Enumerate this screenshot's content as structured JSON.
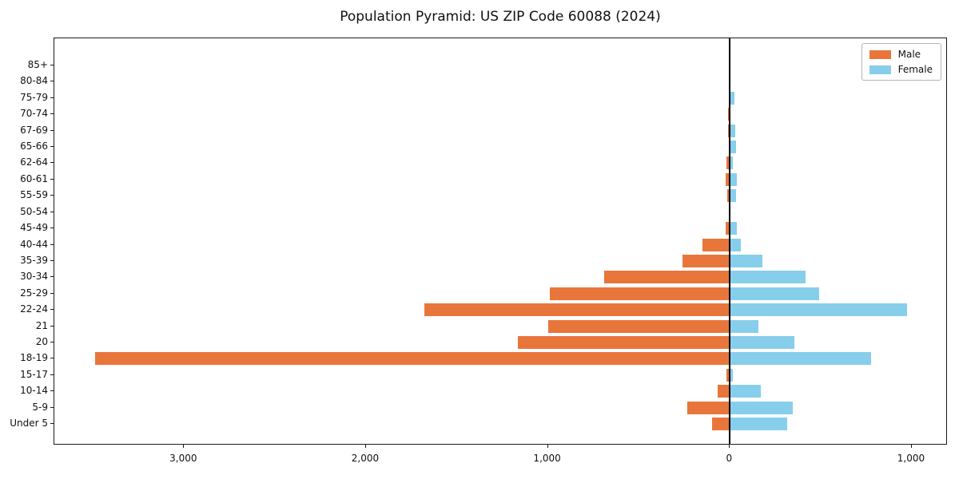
{
  "chart_data": {
    "type": "bar",
    "variant": "population-pyramid",
    "title": "Population Pyramid: US ZIP Code 60088 (2024)",
    "categories_top_to_bottom": [
      "85+",
      "80-84",
      "75-79",
      "70-74",
      "67-69",
      "65-66",
      "62-64",
      "60-61",
      "55-59",
      "50-54",
      "45-49",
      "40-44",
      "35-39",
      "30-34",
      "25-29",
      "22-24",
      "21",
      "20",
      "18-19",
      "15-17",
      "10-14",
      "5-9",
      "Under 5"
    ],
    "series": [
      {
        "name": "Male",
        "side": "left",
        "color": "#E8763B",
        "values": [
          0,
          0,
          0,
          8,
          10,
          0,
          20,
          25,
          15,
          0,
          25,
          150,
          260,
          690,
          990,
          1680,
          1000,
          1165,
          3490,
          20,
          65,
          235,
          100
        ]
      },
      {
        "name": "Female",
        "side": "right",
        "color": "#87CEEB",
        "values": [
          0,
          0,
          25,
          0,
          30,
          35,
          15,
          40,
          35,
          0,
          40,
          60,
          180,
          415,
          490,
          975,
          155,
          355,
          775,
          15,
          170,
          345,
          315
        ]
      }
    ],
    "x_ticks": [
      {
        "value": -3000,
        "label": "3,000"
      },
      {
        "value": -2000,
        "label": "2,000"
      },
      {
        "value": -1000,
        "label": "1,000"
      },
      {
        "value": 0,
        "label": "0"
      },
      {
        "value": 1000,
        "label": "1,000"
      }
    ],
    "xlim": [
      -3713,
      1198
    ],
    "grid": false,
    "legend_position": "upper right",
    "axis_color": "#1a1a1a",
    "background_color": "#ffffff"
  }
}
